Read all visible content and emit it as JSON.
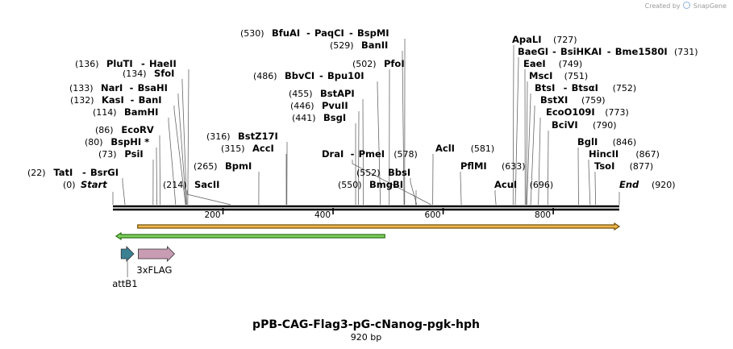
{
  "credit": {
    "text_before": "Created by",
    "text_after": "SnapGene",
    "icon": "snapgene-logo-icon"
  },
  "map": {
    "name": "pPB-CAG-Flag3-pG-cNanog-pgk-hph",
    "length_label": "920 bp",
    "length": 920,
    "start_label": "Start",
    "start_pos": "(0)",
    "end_label": "End",
    "end_pos": "(920)",
    "ticks": [
      200,
      400,
      600,
      800
    ],
    "ticks_labels": [
      "200",
      "400",
      "600",
      "800"
    ]
  },
  "sites": [
    {
      "id": "tati",
      "pos_text": "(22)",
      "names": [
        "TatI",
        "BsrGI"
      ],
      "cut": 22
    },
    {
      "id": "psii",
      "pos_text": "(73)",
      "names": [
        "PsiI"
      ],
      "cut": 73
    },
    {
      "id": "bsphi",
      "pos_text": "(80)",
      "names": [
        "BspHI *"
      ],
      "cut": 80
    },
    {
      "id": "ecorv",
      "pos_text": "(86)",
      "names": [
        "EcoRV"
      ],
      "cut": 86
    },
    {
      "id": "bamhi",
      "pos_text": "(114)",
      "names": [
        "BamHI"
      ],
      "cut": 114
    },
    {
      "id": "kasi",
      "pos_text": "(132)",
      "names": [
        "KasI",
        "BanI"
      ],
      "cut": 132
    },
    {
      "id": "nari",
      "pos_text": "(133)",
      "names": [
        "NarI",
        "BsaHI"
      ],
      "cut": 133
    },
    {
      "id": "sfoi",
      "pos_text": "(134)",
      "names": [
        "SfoI"
      ],
      "cut": 134
    },
    {
      "id": "pluti",
      "pos_text": "(136)",
      "names": [
        "PluTI",
        "HaeII"
      ],
      "cut": 136
    },
    {
      "id": "sacii",
      "pos_text": "(214)",
      "names": [
        "SacII"
      ],
      "cut": 214
    },
    {
      "id": "bpmi",
      "pos_text": "(265)",
      "names": [
        "BpmI"
      ],
      "cut": 265
    },
    {
      "id": "acci",
      "pos_text": "(315)",
      "names": [
        "AccI"
      ],
      "cut": 315
    },
    {
      "id": "bstz17i",
      "pos_text": "(316)",
      "names": [
        "BstZ17I"
      ],
      "cut": 316
    },
    {
      "id": "bsgi",
      "pos_text": "(441)",
      "names": [
        "BsgI"
      ],
      "cut": 441
    },
    {
      "id": "pvuii",
      "pos_text": "(446)",
      "names": [
        "PvuII"
      ],
      "cut": 446
    },
    {
      "id": "bstapi",
      "pos_text": "(455)",
      "names": [
        "BstAPI"
      ],
      "cut": 455
    },
    {
      "id": "bbvci",
      "pos_text": "(486)",
      "names": [
        "BbvCI",
        "Bpu10I"
      ],
      "cut": 486
    },
    {
      "id": "pfoi",
      "pos_text": "(502)",
      "names": [
        "PfoI"
      ],
      "cut": 502
    },
    {
      "id": "banii",
      "pos_text": "(529)",
      "names": [
        "BanII"
      ],
      "cut": 529
    },
    {
      "id": "bfuai",
      "pos_text": "(530)",
      "names": [
        "BfuAI",
        "PaqCI",
        "BspMI"
      ],
      "cut": 530
    },
    {
      "id": "drai",
      "pos_text": "(578)",
      "names": [
        "DraI",
        "PmeI"
      ],
      "cut": 578
    },
    {
      "id": "bbsi",
      "pos_text": "(552)",
      "names": [
        "BbsI"
      ],
      "cut": 552
    },
    {
      "id": "bmgbi",
      "pos_text": "(550)",
      "names": [
        "BmgBI"
      ],
      "cut": 550
    },
    {
      "id": "acli",
      "pos_text": "(581)",
      "names": [
        "AclI"
      ],
      "cut": 581
    },
    {
      "id": "pflmi",
      "pos_text": "(633)",
      "names": [
        "PflMI"
      ],
      "cut": 633
    },
    {
      "id": "acui",
      "pos_text": "(696)",
      "names": [
        "AcuI"
      ],
      "cut": 696
    },
    {
      "id": "apali",
      "pos_text": "(727)",
      "names": [
        "ApaLI"
      ],
      "cut": 727
    },
    {
      "id": "baegi",
      "pos_text": "(731)",
      "names": [
        "BaeGI",
        "BsiHKAI",
        "Bme1580I"
      ],
      "cut": 731
    },
    {
      "id": "eaei",
      "pos_text": "(749)",
      "names": [
        "EaeI"
      ],
      "cut": 749
    },
    {
      "id": "msci",
      "pos_text": "(751)",
      "names": [
        "MscI"
      ],
      "cut": 751
    },
    {
      "id": "btsi",
      "pos_text": "(752)",
      "names": [
        "BtsI",
        "BtsαI"
      ],
      "cut": 752
    },
    {
      "id": "bstxi",
      "pos_text": "(759)",
      "names": [
        "BstXI"
      ],
      "cut": 759
    },
    {
      "id": "eco0109i",
      "pos_text": "(773)",
      "names": [
        "EcoO109I"
      ],
      "cut": 773
    },
    {
      "id": "bcivi",
      "pos_text": "(790)",
      "names": [
        "BciVI"
      ],
      "cut": 790
    },
    {
      "id": "bgli",
      "pos_text": "(846)",
      "names": [
        "BglI"
      ],
      "cut": 846
    },
    {
      "id": "hincii",
      "pos_text": "(867)",
      "names": [
        "HincII"
      ],
      "cut": 867
    },
    {
      "id": "tsoi",
      "pos_text": "(877)",
      "names": [
        "TsoI"
      ],
      "cut": 877
    }
  ],
  "features": [
    {
      "id": "attb1",
      "label": "attB1",
      "start": 15,
      "end": 38,
      "direction": "forward",
      "color": "#3a8093"
    },
    {
      "id": "3xflag",
      "label": "3xFLAG",
      "start": 46,
      "end": 112,
      "direction": "forward",
      "color": "#c89cb2"
    }
  ],
  "ranges": [
    {
      "id": "orange-orf",
      "start": 45,
      "end": 920,
      "direction": "forward",
      "color": "#f2b64c",
      "edge": "#6e5008"
    },
    {
      "id": "green-orf",
      "start": 0,
      "end": 494,
      "direction": "reverse",
      "color": "#7cd35c",
      "edge": "#2e6e16"
    }
  ]
}
